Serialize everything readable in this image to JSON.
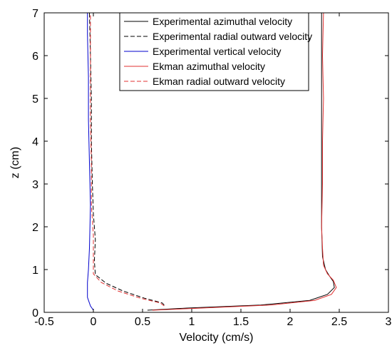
{
  "chart_data": {
    "type": "line",
    "xlabel": "Velocity (cm/s)",
    "ylabel": "z (cm)",
    "xlim": [
      -0.5,
      3
    ],
    "ylim": [
      0,
      7
    ],
    "xticks": [
      "-0.5",
      "0",
      "0.5",
      "1",
      "1.5",
      "2",
      "2.5",
      "3"
    ],
    "yticks": [
      "0",
      "1",
      "2",
      "3",
      "4",
      "5",
      "6",
      "7"
    ],
    "grid": false,
    "legend_position": "top-right",
    "series": [
      {
        "name": "Experimental azimuthal velocity",
        "color": "#000000",
        "dash": "solid",
        "points": [
          [
            0.55,
            0.05
          ],
          [
            0.95,
            0.1
          ],
          [
            1.7,
            0.17
          ],
          [
            2.2,
            0.28
          ],
          [
            2.38,
            0.42
          ],
          [
            2.45,
            0.58
          ],
          [
            2.44,
            0.72
          ],
          [
            2.4,
            0.85
          ],
          [
            2.36,
            1.0
          ],
          [
            2.33,
            1.3
          ],
          [
            2.32,
            2.0
          ],
          [
            2.32,
            3.0
          ],
          [
            2.32,
            4.0
          ],
          [
            2.32,
            5.0
          ],
          [
            2.32,
            6.0
          ],
          [
            2.32,
            7.0
          ]
        ]
      },
      {
        "name": "Experimental radial outward velocity",
        "color": "#000000",
        "dash": "dashed",
        "points": [
          [
            0.72,
            0.17
          ],
          [
            0.7,
            0.22
          ],
          [
            0.52,
            0.33
          ],
          [
            0.3,
            0.5
          ],
          [
            0.13,
            0.68
          ],
          [
            0.02,
            0.88
          ],
          [
            0.01,
            1.2
          ],
          [
            0.02,
            1.7
          ],
          [
            0.0,
            2.3
          ],
          [
            -0.01,
            3.0
          ],
          [
            -0.02,
            4.0
          ],
          [
            -0.02,
            5.0
          ],
          [
            -0.03,
            6.0
          ],
          [
            -0.04,
            7.0
          ]
        ]
      },
      {
        "name": "Experimental vertical velocity",
        "color": "#0000cc",
        "dash": "solid",
        "points": [
          [
            0.0,
            0.05
          ],
          [
            -0.03,
            0.15
          ],
          [
            -0.06,
            0.35
          ],
          [
            -0.06,
            0.7
          ],
          [
            -0.05,
            1.0
          ],
          [
            -0.04,
            1.5
          ],
          [
            -0.03,
            2.5
          ],
          [
            -0.04,
            3.5
          ],
          [
            -0.05,
            4.5
          ],
          [
            -0.05,
            5.5
          ],
          [
            -0.06,
            6.5
          ],
          [
            -0.06,
            7.0
          ]
        ]
      },
      {
        "name": "Ekman azimuthal velocity",
        "color": "#e03030",
        "dash": "solid",
        "points": [
          [
            0.6,
            0.05
          ],
          [
            1.1,
            0.1
          ],
          [
            1.8,
            0.17
          ],
          [
            2.25,
            0.28
          ],
          [
            2.42,
            0.42
          ],
          [
            2.47,
            0.58
          ],
          [
            2.44,
            0.75
          ],
          [
            2.38,
            0.9
          ],
          [
            2.34,
            1.1
          ],
          [
            2.33,
            1.5
          ],
          [
            2.32,
            2.0
          ],
          [
            2.33,
            3.0
          ],
          [
            2.33,
            4.0
          ],
          [
            2.34,
            5.0
          ],
          [
            2.33,
            6.0
          ],
          [
            2.34,
            7.0
          ]
        ]
      },
      {
        "name": "Ekman radial outward velocity",
        "color": "#e03030",
        "dash": "dashed",
        "points": [
          [
            0.72,
            0.15
          ],
          [
            0.68,
            0.22
          ],
          [
            0.48,
            0.33
          ],
          [
            0.25,
            0.5
          ],
          [
            0.08,
            0.7
          ],
          [
            0.0,
            0.9
          ],
          [
            0.0,
            1.2
          ],
          [
            0.0,
            1.8
          ],
          [
            -0.02,
            2.5
          ],
          [
            -0.02,
            3.5
          ],
          [
            -0.03,
            4.5
          ],
          [
            -0.03,
            5.5
          ],
          [
            -0.03,
            6.5
          ],
          [
            -0.03,
            7.0
          ]
        ]
      }
    ]
  }
}
